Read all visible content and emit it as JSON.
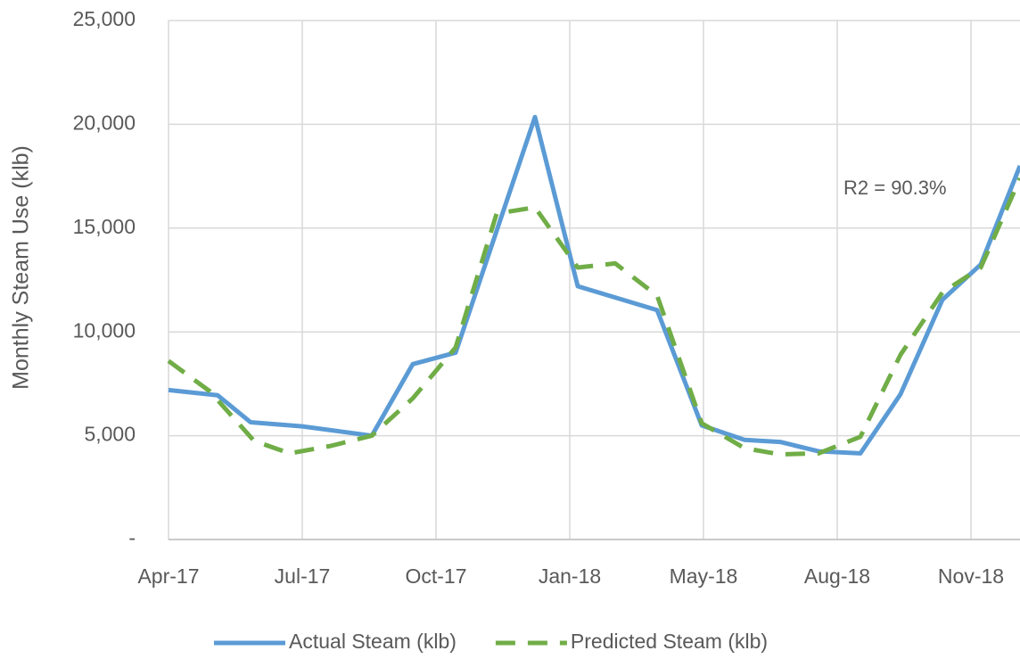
{
  "chart_data": {
    "type": "line",
    "y_label": "Monthly Steam Use (klb)",
    "annotation": "R2 = 90.3%",
    "xlim": [
      0,
      19.1
    ],
    "xticks": [
      {
        "value": 0,
        "label": "Apr-17"
      },
      {
        "value": 3,
        "label": "Jul-17"
      },
      {
        "value": 6,
        "label": "Oct-17"
      },
      {
        "value": 9,
        "label": "Jan-18"
      },
      {
        "value": 12,
        "label": "May-18"
      },
      {
        "value": 15,
        "label": "Aug-18"
      },
      {
        "value": 18,
        "label": "Nov-18"
      }
    ],
    "ylim": [
      0,
      25000
    ],
    "yticks": [
      {
        "value": 0,
        "label": "-"
      },
      {
        "value": 5000,
        "label": "5,000"
      },
      {
        "value": 10000,
        "label": "10,000"
      },
      {
        "value": 15000,
        "label": "15,000"
      },
      {
        "value": 20000,
        "label": "20,000"
      },
      {
        "value": 25000,
        "label": "25,000"
      }
    ],
    "grid": true,
    "legend": "bottom",
    "series": [
      {
        "name": "Actual Steam (klb)",
        "color": "#5b9bd5",
        "dashed": false,
        "x": [
          0,
          1.1,
          1.84,
          3.0,
          4.56,
          5.48,
          6.44,
          8.22,
          9.18,
          10.96,
          11.96,
          12.92,
          13.72,
          14.58,
          15.52,
          16.42,
          17.36,
          18.22,
          19.1
        ],
        "values": [
          7200,
          6950,
          5650,
          5450,
          5000,
          8450,
          9000,
          20350,
          12200,
          11050,
          5500,
          4800,
          4700,
          4250,
          4150,
          7000,
          11550,
          13250,
          18000
        ]
      },
      {
        "name": "Predicted Steam (klb)",
        "color": "#70ad47",
        "dashed": true,
        "x": [
          0,
          0.92,
          1.92,
          2.72,
          3.62,
          4.56,
          5.48,
          6.44,
          7.36,
          8.22,
          9.18,
          10.02,
          10.96,
          11.96,
          12.92,
          13.72,
          14.58,
          15.52,
          16.42,
          17.36,
          18.22,
          19.1
        ],
        "values": [
          8600,
          7150,
          4750,
          4150,
          4500,
          5000,
          6800,
          9250,
          15700,
          16000,
          13100,
          13300,
          11750,
          5600,
          4400,
          4100,
          4150,
          4950,
          8900,
          11900,
          13100,
          17400
        ]
      }
    ]
  }
}
